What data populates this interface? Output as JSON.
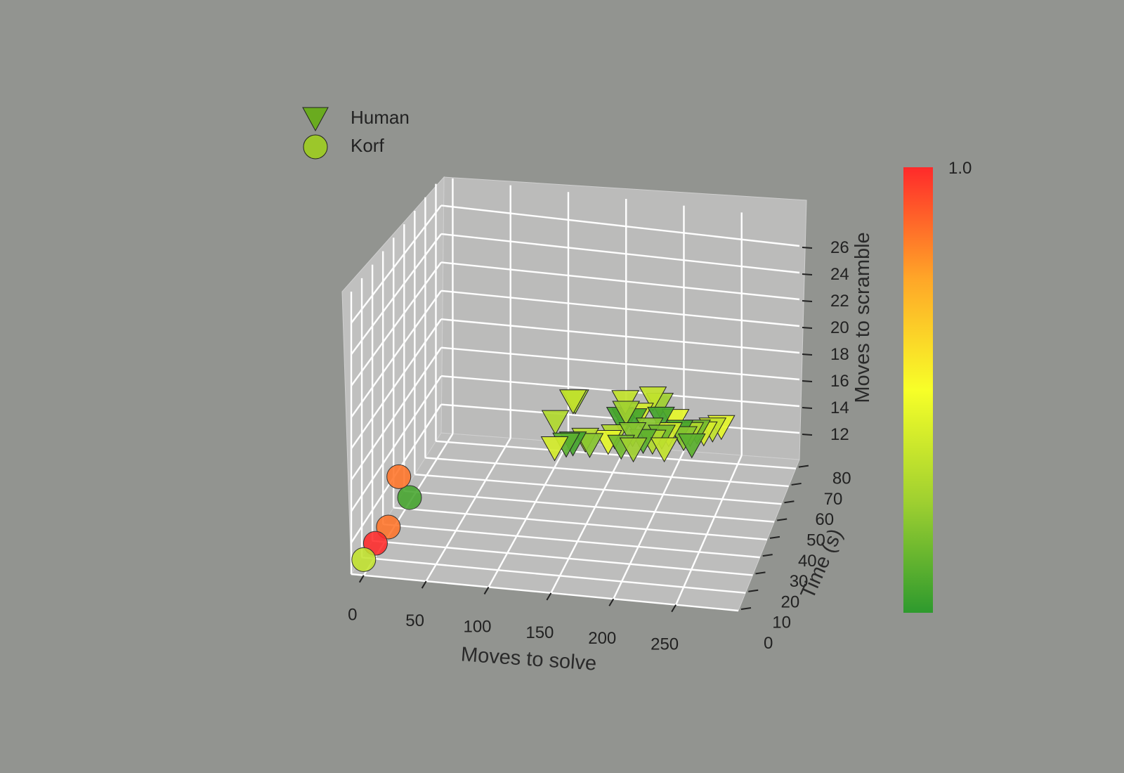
{
  "chart_data": {
    "type": "scatter",
    "projection": "3d",
    "title": "",
    "xlabel": "Moves to solve",
    "ylabel": "Time (s)",
    "zlabel": "Moves to scramble",
    "xticks": [
      0,
      50,
      100,
      150,
      200,
      250
    ],
    "yticks": [
      0,
      10,
      20,
      30,
      40,
      50,
      60,
      70,
      80
    ],
    "zticks": [
      12,
      14,
      16,
      18,
      20,
      22,
      24,
      26
    ],
    "xlim": [
      -10,
      300
    ],
    "ylim": [
      0,
      85
    ],
    "zlim": [
      10,
      28
    ],
    "grid": true,
    "legend_position": "top-left",
    "colorbar": {
      "label_top": "1.0",
      "colormap": [
        "#2e9a2e",
        "#9fd030",
        "#f7ff28",
        "#ffa628",
        "#ff2a2a"
      ]
    },
    "series": [
      {
        "name": "Human",
        "marker": "triangle-down",
        "color": "#6aab1f",
        "points": [
          {
            "x": 150,
            "y": 25,
            "z": 20,
            "c": 0.35
          },
          {
            "x": 151,
            "y": 26,
            "z": 19.9,
            "c": 0.25
          },
          {
            "x": 137,
            "y": 23,
            "z": 18.7,
            "c": 0.3
          },
          {
            "x": 140,
            "y": 18,
            "z": 17.5,
            "c": 0.4
          },
          {
            "x": 148,
            "y": 20,
            "z": 17.6,
            "c": 0.1
          },
          {
            "x": 152,
            "y": 22,
            "z": 17.5,
            "c": 0.05
          },
          {
            "x": 160,
            "y": 25,
            "z": 17.5,
            "c": 0.32
          },
          {
            "x": 165,
            "y": 23,
            "z": 17.4,
            "c": 0.2
          },
          {
            "x": 190,
            "y": 29,
            "z": 19.9,
            "c": 0.35
          },
          {
            "x": 192,
            "y": 27,
            "z": 19.4,
            "c": 0.25
          },
          {
            "x": 185,
            "y": 30,
            "z": 18.6,
            "c": 0.05
          },
          {
            "x": 188,
            "y": 32,
            "z": 18.3,
            "c": 0.1
          },
          {
            "x": 196,
            "y": 30,
            "z": 18.6,
            "c": 0.05
          },
          {
            "x": 200,
            "y": 32,
            "z": 18.8,
            "c": 0.4
          },
          {
            "x": 198,
            "y": 26,
            "z": 18.1,
            "c": 0.2
          },
          {
            "x": 182,
            "y": 28,
            "z": 17.6,
            "c": 0.3
          },
          {
            "x": 178,
            "y": 26,
            "z": 17.4,
            "c": 0.45
          },
          {
            "x": 190,
            "y": 24,
            "z": 17.4,
            "c": 0.15
          },
          {
            "x": 210,
            "y": 33,
            "z": 19.9,
            "c": 0.35
          },
          {
            "x": 215,
            "y": 34,
            "z": 19.4,
            "c": 0.25
          },
          {
            "x": 218,
            "y": 31,
            "z": 18.8,
            "c": 0.05
          },
          {
            "x": 210,
            "y": 29,
            "z": 18.2,
            "c": 0.2
          },
          {
            "x": 220,
            "y": 29,
            "z": 17.8,
            "c": 0.15
          },
          {
            "x": 225,
            "y": 30,
            "z": 17.9,
            "c": 0.4
          },
          {
            "x": 206,
            "y": 27,
            "z": 17.6,
            "c": 0.1
          },
          {
            "x": 213,
            "y": 28,
            "z": 17.5,
            "c": 0.3
          },
          {
            "x": 228,
            "y": 34,
            "z": 18.4,
            "c": 0.45
          },
          {
            "x": 232,
            "y": 33,
            "z": 17.8,
            "c": 0.05
          },
          {
            "x": 236,
            "y": 32,
            "z": 17.5,
            "c": 0.2
          },
          {
            "x": 240,
            "y": 34,
            "z": 17.6,
            "c": 0.3
          },
          {
            "x": 245,
            "y": 35,
            "z": 17.7,
            "c": 0.15
          },
          {
            "x": 250,
            "y": 36,
            "z": 17.5,
            "c": 0.4
          },
          {
            "x": 244,
            "y": 30,
            "z": 17.3,
            "c": 0.1
          },
          {
            "x": 256,
            "y": 38,
            "z": 17.6,
            "c": 0.35
          },
          {
            "x": 262,
            "y": 40,
            "z": 17.6,
            "c": 0.45
          },
          {
            "x": 200,
            "y": 24,
            "z": 17.3,
            "c": 0.25
          },
          {
            "x": 224,
            "y": 26,
            "z": 17.3,
            "c": 0.35
          }
        ]
      },
      {
        "name": "Korf",
        "marker": "circle",
        "color": "#9cc72a",
        "points": [
          {
            "x": 24,
            "y": 5,
            "z": 16,
            "c": 0.85
          },
          {
            "x": 5,
            "y": 38,
            "z": 11,
            "c": 0.05
          },
          {
            "x": 3,
            "y": 20,
            "z": 11,
            "c": 0.85
          },
          {
            "x": 1,
            "y": 10,
            "z": 11,
            "c": 1.0
          },
          {
            "x": 0,
            "y": 0,
            "z": 11,
            "c": 0.35
          }
        ]
      }
    ]
  }
}
